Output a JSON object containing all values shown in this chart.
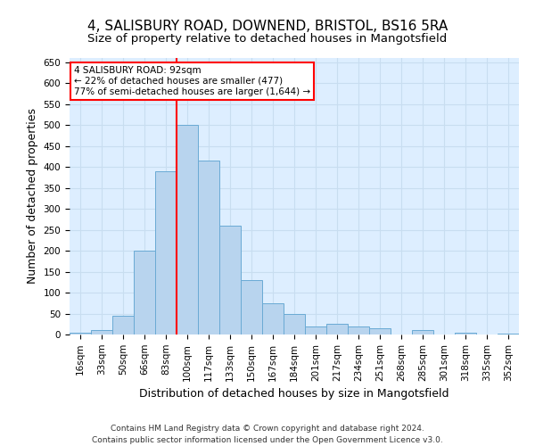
{
  "title_line1": "4, SALISBURY ROAD, DOWNEND, BRISTOL, BS16 5RA",
  "title_line2": "Size of property relative to detached houses in Mangotsfield",
  "xlabel": "Distribution of detached houses by size in Mangotsfield",
  "ylabel": "Number of detached properties",
  "categories": [
    "16sqm",
    "33sqm",
    "50sqm",
    "66sqm",
    "83sqm",
    "100sqm",
    "117sqm",
    "133sqm",
    "150sqm",
    "167sqm",
    "184sqm",
    "201sqm",
    "217sqm",
    "234sqm",
    "251sqm",
    "268sqm",
    "285sqm",
    "301sqm",
    "318sqm",
    "335sqm",
    "352sqm"
  ],
  "values": [
    5,
    10,
    45,
    200,
    390,
    500,
    415,
    260,
    130,
    75,
    50,
    20,
    25,
    20,
    15,
    0,
    10,
    0,
    5,
    0,
    3
  ],
  "bar_color": "#b8d4ee",
  "bar_edge_color": "#6aaad4",
  "background_color": "#ddeeff",
  "grid_color": "#c8ddf0",
  "vline_color": "red",
  "vline_x": 4.5,
  "annotation_text": "4 SALISBURY ROAD: 92sqm\n← 22% of detached houses are smaller (477)\n77% of semi-detached houses are larger (1,644) →",
  "annotation_box_color": "white",
  "annotation_box_edge": "red",
  "ylim": [
    0,
    660
  ],
  "yticks": [
    0,
    50,
    100,
    150,
    200,
    250,
    300,
    350,
    400,
    450,
    500,
    550,
    600,
    650
  ],
  "footer_line1": "Contains HM Land Registry data © Crown copyright and database right 2024.",
  "footer_line2": "Contains public sector information licensed under the Open Government Licence v3.0.",
  "title_fontsize": 11,
  "subtitle_fontsize": 9.5,
  "axis_label_fontsize": 9,
  "tick_fontsize": 7.5,
  "annotation_fontsize": 7.5,
  "footer_fontsize": 6.5
}
